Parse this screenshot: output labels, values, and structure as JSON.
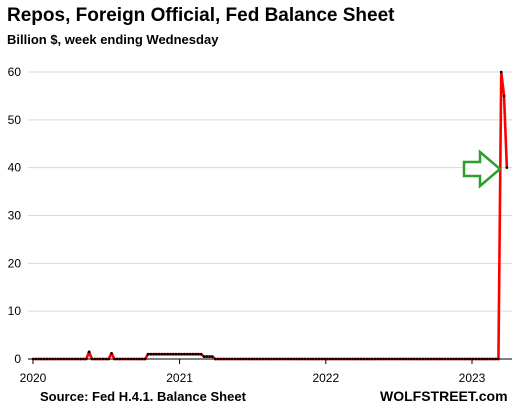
{
  "chart_data": {
    "type": "line",
    "title": "Repos, Foreign Official, Fed Balance Sheet",
    "subtitle": "Billion $, week ending Wednesday",
    "xlabel": "",
    "ylabel": "",
    "ylim": [
      0,
      60
    ],
    "yticks": [
      "0",
      "10",
      "20",
      "30",
      "40",
      "50",
      "60"
    ],
    "xticks": [
      "2020",
      "2021",
      "2022",
      "2023"
    ],
    "grid": true,
    "legend": "none",
    "x_dates": [
      "2020-01-01",
      "2020-01-08",
      "2020-01-15",
      "2020-01-22",
      "2020-01-29",
      "2020-02-05",
      "2020-02-12",
      "2020-02-19",
      "2020-02-26",
      "2020-03-04",
      "2020-03-11",
      "2020-03-18",
      "2020-03-25",
      "2020-04-01",
      "2020-04-08",
      "2020-04-15",
      "2020-04-22",
      "2020-04-29",
      "2020-05-06",
      "2020-05-13",
      "2020-05-20",
      "2020-05-27",
      "2020-06-03",
      "2020-06-10",
      "2020-06-17",
      "2020-06-24",
      "2020-07-01",
      "2020-07-08",
      "2020-07-15",
      "2020-07-22",
      "2020-07-29",
      "2020-08-05",
      "2020-08-12",
      "2020-08-19",
      "2020-08-26",
      "2020-09-02",
      "2020-09-09",
      "2020-09-16",
      "2020-09-23",
      "2020-09-30",
      "2020-10-07",
      "2020-10-14",
      "2020-10-21",
      "2020-10-28",
      "2020-11-04",
      "2020-11-11",
      "2020-11-18",
      "2020-11-25",
      "2020-12-02",
      "2020-12-09",
      "2020-12-16",
      "2020-12-23",
      "2020-12-30",
      "2021-01-06",
      "2021-01-13",
      "2021-01-20",
      "2021-01-27",
      "2021-02-03",
      "2021-02-10",
      "2021-02-17",
      "2021-02-24",
      "2021-03-03",
      "2021-03-10",
      "2021-03-17",
      "2021-03-24",
      "2021-03-31",
      "2021-04-07",
      "2021-04-14",
      "2021-04-21",
      "2021-04-28",
      "2021-05-05",
      "2021-05-12",
      "2021-05-19",
      "2021-05-26",
      "2021-06-02",
      "2021-06-09",
      "2021-06-16",
      "2021-06-23",
      "2021-06-30",
      "2021-07-07",
      "2021-07-14",
      "2021-07-21",
      "2021-07-28",
      "2021-08-04",
      "2021-08-11",
      "2021-08-18",
      "2021-08-25",
      "2021-09-01",
      "2021-09-08",
      "2021-09-15",
      "2021-09-22",
      "2021-09-29",
      "2021-10-06",
      "2021-10-13",
      "2021-10-20",
      "2021-10-27",
      "2021-11-03",
      "2021-11-10",
      "2021-11-17",
      "2021-11-24",
      "2021-12-01",
      "2021-12-08",
      "2021-12-15",
      "2021-12-22",
      "2021-12-29",
      "2022-01-05",
      "2022-01-12",
      "2022-01-19",
      "2022-01-26",
      "2022-02-02",
      "2022-02-09",
      "2022-02-16",
      "2022-02-23",
      "2022-03-02",
      "2022-03-09",
      "2022-03-16",
      "2022-03-23",
      "2022-03-30",
      "2022-04-06",
      "2022-04-13",
      "2022-04-20",
      "2022-04-27",
      "2022-05-04",
      "2022-05-11",
      "2022-05-18",
      "2022-05-25",
      "2022-06-01",
      "2022-06-08",
      "2022-06-15",
      "2022-06-22",
      "2022-06-29",
      "2022-07-06",
      "2022-07-13",
      "2022-07-20",
      "2022-07-27",
      "2022-08-03",
      "2022-08-10",
      "2022-08-17",
      "2022-08-24",
      "2022-08-31",
      "2022-09-07",
      "2022-09-14",
      "2022-09-21",
      "2022-09-28",
      "2022-10-05",
      "2022-10-12",
      "2022-10-19",
      "2022-10-26",
      "2022-11-02",
      "2022-11-09",
      "2022-11-16",
      "2022-11-23",
      "2022-11-30",
      "2022-12-07",
      "2022-12-14",
      "2022-12-21",
      "2022-12-28",
      "2023-01-04",
      "2023-01-11",
      "2023-01-18",
      "2023-01-25",
      "2023-02-01",
      "2023-02-08",
      "2023-02-15",
      "2023-02-22",
      "2023-03-01",
      "2023-03-08",
      "2023-03-15",
      "2023-03-22",
      "2023-03-29"
    ],
    "series": [
      {
        "color": "#ff0000",
        "values": [
          0,
          0,
          0,
          0,
          0,
          0,
          0,
          0,
          0,
          0,
          0,
          0,
          0,
          0,
          0,
          0,
          0,
          0,
          0,
          0,
          1.5,
          0,
          0,
          0,
          0,
          0,
          0,
          0,
          1.2,
          0,
          0,
          0,
          0,
          0,
          0,
          0,
          0,
          0,
          0,
          0,
          0,
          1,
          1,
          1,
          1,
          1,
          1,
          1,
          1,
          1,
          1,
          1,
          1,
          1,
          1,
          1,
          1,
          1,
          1,
          1,
          1,
          0.5,
          0.5,
          0.5,
          0.5,
          0,
          0,
          0,
          0,
          0,
          0,
          0,
          0,
          0,
          0,
          0,
          0,
          0,
          0,
          0,
          0,
          0,
          0,
          0,
          0,
          0,
          0,
          0,
          0,
          0,
          0,
          0,
          0,
          0,
          0,
          0,
          0,
          0,
          0,
          0,
          0,
          0,
          0,
          0,
          0,
          0,
          0,
          0,
          0,
          0,
          0,
          0,
          0,
          0,
          0,
          0,
          0,
          0,
          0,
          0,
          0,
          0,
          0,
          0,
          0,
          0,
          0,
          0,
          0,
          0,
          0,
          0,
          0,
          0,
          0,
          0,
          0,
          0,
          0,
          0,
          0,
          0,
          0,
          0,
          0,
          0,
          0,
          0,
          0,
          0,
          0,
          0,
          0,
          0,
          0,
          0,
          0,
          0,
          0,
          0,
          0,
          0,
          0,
          0,
          0,
          0,
          0,
          60,
          55,
          40
        ]
      }
    ],
    "annotations": [
      {
        "type": "arrow",
        "color": "#2e9e2e",
        "points_to_value": 40
      }
    ]
  },
  "footer": {
    "source": "Source: Fed H.4.1. Balance Sheet",
    "brand": "WOLFSTREET.com"
  }
}
